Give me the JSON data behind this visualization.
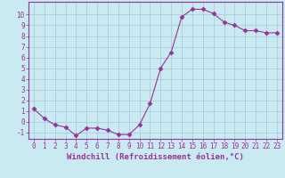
{
  "x": [
    0,
    1,
    2,
    3,
    4,
    5,
    6,
    7,
    8,
    9,
    10,
    11,
    12,
    13,
    14,
    15,
    16,
    17,
    18,
    19,
    20,
    21,
    22,
    23
  ],
  "y": [
    1.2,
    0.3,
    -0.3,
    -0.5,
    -1.3,
    -0.6,
    -0.6,
    -0.8,
    -1.2,
    -1.2,
    -0.3,
    1.7,
    5.0,
    6.5,
    9.8,
    10.5,
    10.5,
    10.1,
    9.3,
    9.0,
    8.5,
    8.5,
    8.3,
    8.3
  ],
  "xlabel": "Windchill (Refroidissement éolien,°C)",
  "ylim": [
    -1.6,
    11.2
  ],
  "xlim": [
    -0.5,
    23.5
  ],
  "yticks": [
    -1,
    0,
    1,
    2,
    3,
    4,
    5,
    6,
    7,
    8,
    9,
    10
  ],
  "xticks": [
    0,
    1,
    2,
    3,
    4,
    5,
    6,
    7,
    8,
    9,
    10,
    11,
    12,
    13,
    14,
    15,
    16,
    17,
    18,
    19,
    20,
    21,
    22,
    23
  ],
  "line_color": "#993399",
  "marker": "D",
  "marker_size": 2.5,
  "bg_color": "#c8eaf0",
  "grid_color": "#aaccdd",
  "xlabel_fontsize": 6.5,
  "tick_fontsize": 5.5
}
